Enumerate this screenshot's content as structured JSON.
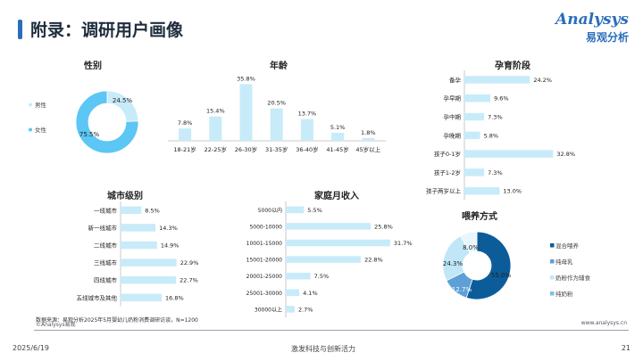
{
  "page": {
    "title": "附录：调研用户画像",
    "logo_word": "Analysys",
    "logo_sub": "易观分析",
    "source": "数据来源：易观分析2025年5月婴幼儿奶粉消费调研访谈，N=1200",
    "copyright": "©Analysys易观",
    "website": "www.analysys.cn",
    "date": "2025/6/19",
    "slogan": "激发科技与创新活力",
    "page_number": "21"
  },
  "colors": {
    "light_blue": "#c8ebfa",
    "sky_blue": "#5cc6f4",
    "navy": "#0c5c9a",
    "mid_blue": "#5d9fd6",
    "pale": "#bfe7f8",
    "text": "#222222"
  },
  "chart_data": [
    {
      "id": "gender",
      "type": "pie",
      "title": "性别",
      "categories": [
        "男性",
        "女性"
      ],
      "values": [
        24.5,
        75.5
      ],
      "data_labels": [
        "24.5%",
        "75.5%"
      ],
      "colors": [
        "#c8ebfa",
        "#5cc6f4"
      ],
      "legend": "left"
    },
    {
      "id": "age",
      "type": "bar",
      "title": "年龄",
      "categories": [
        "18-21岁",
        "22-25岁",
        "26-30岁",
        "31-35岁",
        "36-40岁",
        "41-45岁",
        "45岁以上"
      ],
      "values": [
        7.8,
        15.4,
        35.8,
        20.5,
        13.7,
        5.1,
        1.8
      ],
      "data_labels": [
        "7.8%",
        "15.4%",
        "35.8%",
        "20.5%",
        "13.7%",
        "5.1%",
        "1.8%"
      ],
      "ylim": [
        0,
        36
      ]
    },
    {
      "id": "pregnancy",
      "type": "bar",
      "orientation": "horizontal",
      "title": "孕育阶段",
      "categories": [
        "备孕",
        "孕早期",
        "孕中期",
        "孕晚期",
        "孩子0-1岁",
        "孩子1-2岁",
        "孩子两岁以上"
      ],
      "values": [
        24.2,
        9.6,
        7.3,
        5.8,
        32.8,
        7.3,
        13.0
      ],
      "data_labels": [
        "24.2%",
        "9.6%",
        "7.3%",
        "5.8%",
        "32.8%",
        "7.3%",
        "13.0%"
      ],
      "xlim": [
        0,
        33
      ]
    },
    {
      "id": "city",
      "type": "bar",
      "orientation": "horizontal",
      "title": "城市级别",
      "categories": [
        "一线城市",
        "新一线城市",
        "二线城市",
        "三线城市",
        "四线城市",
        "五线城市及其他"
      ],
      "values": [
        8.5,
        14.3,
        14.9,
        22.9,
        22.7,
        16.8
      ],
      "data_labels": [
        "8.5%",
        "14.3%",
        "14.9%",
        "22.9%",
        "22.7%",
        "16.8%"
      ],
      "xlim": [
        0,
        23
      ]
    },
    {
      "id": "income",
      "type": "bar",
      "orientation": "horizontal",
      "title": "家庭月收入",
      "categories": [
        "5000以内",
        "5000-10000",
        "10001-15000",
        "15001-20000",
        "20001-25000",
        "25001-30000",
        "30000以上"
      ],
      "values": [
        5.5,
        25.8,
        31.7,
        22.8,
        7.5,
        4.1,
        2.7
      ],
      "data_labels": [
        "5.5%",
        "25.8%",
        "31.7%",
        "22.8%",
        "7.5%",
        "4.1%",
        "2.7%"
      ],
      "xlim": [
        0,
        32
      ]
    },
    {
      "id": "feeding",
      "type": "pie",
      "title": "喂养方式",
      "categories": [
        "混合喂养",
        "纯母乳",
        "奶粉作为辅食",
        "纯奶粉"
      ],
      "values": [
        55.0,
        12.7,
        24.3,
        8.0
      ],
      "data_labels": [
        "55.0%",
        "12.7%",
        "24.3%",
        "8.0%"
      ],
      "colors": [
        "#0c5c9a",
        "#5d9fd6",
        "#bfe7f8",
        "#e8f6fd"
      ],
      "legend": "right"
    }
  ]
}
